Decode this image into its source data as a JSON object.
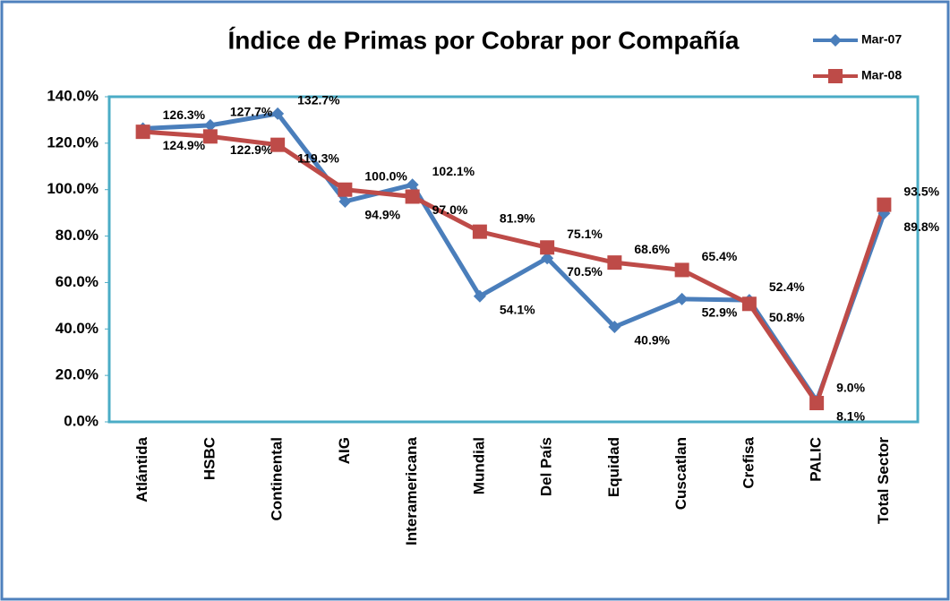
{
  "chart_data": {
    "type": "line",
    "title": "Índice de Primas por Cobrar por Compañía",
    "categories": [
      "Atlántida",
      "HSBC",
      "Continental",
      "AIG",
      "Interamericana",
      "Mundial",
      "Del País",
      "Equidad",
      "Cuscatlan",
      "Crefisa",
      "PALIC",
      "Total Sector"
    ],
    "series": [
      {
        "name": "Mar-07",
        "color": "#4a7ebb",
        "marker": "diamond",
        "values": [
          126.3,
          127.7,
          132.7,
          94.9,
          102.1,
          54.1,
          70.5,
          40.9,
          52.9,
          52.4,
          9.0,
          89.8
        ],
        "value_labels": [
          "126.3%",
          "127.7%",
          "132.7%",
          "94.9%",
          "102.1%",
          "54.1%",
          "70.5%",
          "40.9%",
          "52.9%",
          "52.4%",
          "9.0%",
          "89.8%"
        ]
      },
      {
        "name": "Mar-08",
        "color": "#be4b48",
        "marker": "square",
        "values": [
          124.9,
          122.9,
          119.3,
          100.0,
          97.0,
          81.9,
          75.1,
          68.6,
          65.4,
          50.8,
          8.1,
          93.5
        ],
        "value_labels": [
          "124.9%",
          "122.9%",
          "119.3%",
          "100.0%",
          "97.0%",
          "81.9%",
          "75.1%",
          "68.6%",
          "65.4%",
          "50.8%",
          "8.1%",
          "93.5%"
        ]
      }
    ],
    "ylim": [
      0,
      140
    ],
    "yticks": [
      {
        "value": 0,
        "label": "0.0%"
      },
      {
        "value": 20,
        "label": "20.0%"
      },
      {
        "value": 40,
        "label": "40.0%"
      },
      {
        "value": 60,
        "label": "60.0%"
      },
      {
        "value": 80,
        "label": "80.0%"
      },
      {
        "value": 100,
        "label": "100.0%"
      },
      {
        "value": 120,
        "label": "120.0%"
      },
      {
        "value": 140,
        "label": "140.0%"
      }
    ],
    "legend": "top-right"
  }
}
